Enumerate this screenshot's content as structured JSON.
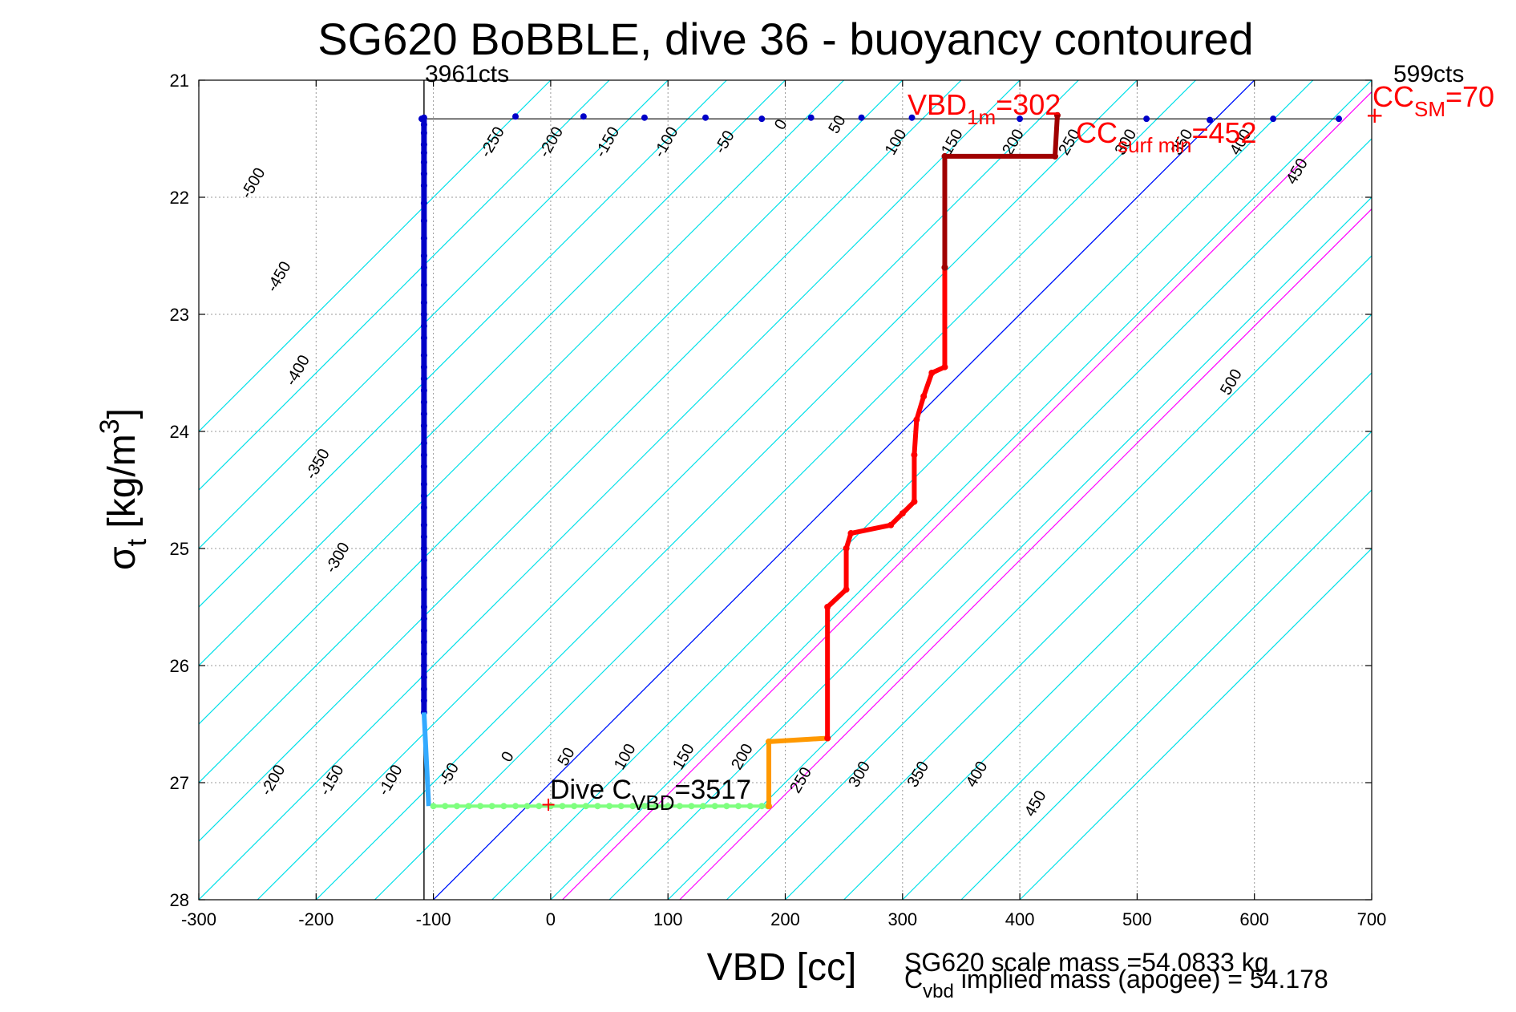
{
  "chart_data": {
    "type": "scatter",
    "title": "SG620 BoBBLE, dive 36 - buoyancy contoured",
    "xlabel": "VBD [cc]",
    "ylabel_main": "σ",
    "ylabel_sub": "t",
    "ylabel_rest": " [kg/m",
    "ylabel_sup": "3",
    "ylabel_end": "]",
    "xlim": [
      -300,
      700
    ],
    "ylim": [
      21,
      28
    ],
    "y_reversed": true,
    "grid": true,
    "xticks": [
      -300,
      -200,
      -100,
      0,
      100,
      200,
      300,
      400,
      500,
      600,
      700
    ],
    "yticks": [
      21,
      22,
      23,
      24,
      25,
      26,
      27,
      28
    ],
    "contour_slope": 0.014,
    "top_contours": [
      {
        "label": "-500",
        "x0": -900
      },
      {
        "label": "-450",
        "x0": -850
      },
      {
        "label": "-400",
        "x0": -800
      },
      {
        "label": "-350",
        "x0": -750
      },
      {
        "label": "-300",
        "x0": -700
      },
      {
        "label": "-250",
        "x0": -650
      },
      {
        "label": "-200",
        "x0": -600
      },
      {
        "label": "-150",
        "x0": -550
      },
      {
        "label": "-100",
        "x0": -500
      },
      {
        "label": "-50",
        "x0": -450
      },
      {
        "label": "0",
        "x0": -400
      },
      {
        "label": "50",
        "x0": -350
      },
      {
        "label": "100",
        "x0": -300
      },
      {
        "label": "150",
        "x0": -250
      },
      {
        "label": "200",
        "x0": -200
      },
      {
        "label": "250",
        "x0": -150
      },
      {
        "label": "300",
        "x0": -100
      },
      {
        "label": "350",
        "x0": -50
      },
      {
        "label": "400",
        "x0": 0
      },
      {
        "label": "450",
        "x0": 50
      },
      {
        "label": "500",
        "x0": 100
      }
    ],
    "bottom_contour_labels": [
      "-200",
      "-150",
      "-100",
      "-50",
      "0",
      "50",
      "100",
      "150",
      "200",
      "250",
      "300",
      "350",
      "400",
      "450"
    ],
    "cyan_contour_x0": [
      -900,
      -850,
      -800,
      -750,
      -700,
      -650,
      -600,
      -550,
      -500,
      -450,
      -400,
      -350,
      -300,
      -250,
      -200,
      -150,
      -100,
      -50,
      0,
      50,
      100,
      150,
      200
    ],
    "blue_line_x0": -400,
    "magenta_line_x0": [
      -300,
      -200
    ],
    "contour_labels_top": [
      {
        "text": "-500",
        "x": -250,
        "y": 21.9
      },
      {
        "text": "-450",
        "x": -228,
        "y": 22.7
      },
      {
        "text": "-400",
        "x": -212,
        "y": 23.5
      },
      {
        "text": "-350",
        "x": -195,
        "y": 24.3
      },
      {
        "text": "-300",
        "x": -178,
        "y": 25.1
      },
      {
        "text": "-250",
        "x": -46,
        "y": 21.55
      },
      {
        "text": "-200",
        "x": 4,
        "y": 21.55
      },
      {
        "text": "-150",
        "x": 52,
        "y": 21.55
      },
      {
        "text": "-100",
        "x": 102,
        "y": 21.55
      },
      {
        "text": "-50",
        "x": 152,
        "y": 21.55
      },
      {
        "text": "0",
        "x": 200,
        "y": 21.4
      },
      {
        "text": "50",
        "x": 248,
        "y": 21.4
      },
      {
        "text": "100",
        "x": 298,
        "y": 21.55
      },
      {
        "text": "150",
        "x": 346,
        "y": 21.55
      },
      {
        "text": "200",
        "x": 398,
        "y": 21.55
      },
      {
        "text": "250",
        "x": 446,
        "y": 21.55
      },
      {
        "text": "300",
        "x": 494,
        "y": 21.55
      },
      {
        "text": "350",
        "x": 542,
        "y": 21.55
      },
      {
        "text": "400",
        "x": 592,
        "y": 21.55
      },
      {
        "text": "450",
        "x": 640,
        "y": 21.8
      },
      {
        "text": "500",
        "x": 584,
        "y": 23.6
      }
    ],
    "contour_labels_bottom": [
      {
        "text": "-200",
        "x": -233,
        "y": 27.0
      },
      {
        "text": "-150",
        "x": -183,
        "y": 27.0
      },
      {
        "text": "-100",
        "x": -133,
        "y": 27.0
      },
      {
        "text": "-50",
        "x": -83,
        "y": 26.95
      },
      {
        "text": "0",
        "x": -33,
        "y": 26.8
      },
      {
        "text": "50",
        "x": 17,
        "y": 26.8
      },
      {
        "text": "100",
        "x": 67,
        "y": 26.8
      },
      {
        "text": "150",
        "x": 117,
        "y": 26.8
      },
      {
        "text": "200",
        "x": 167,
        "y": 26.8
      },
      {
        "text": "250",
        "x": 217,
        "y": 27.0
      },
      {
        "text": "300",
        "x": 267,
        "y": 26.95
      },
      {
        "text": "350",
        "x": 317,
        "y": 26.95
      },
      {
        "text": "400",
        "x": 367,
        "y": 26.95
      },
      {
        "text": "450",
        "x": 417,
        "y": 27.2
      }
    ],
    "climb_series": {
      "color": "#0000c8",
      "x": -108,
      "y_points": [
        21.32,
        21.38,
        21.45,
        21.55,
        21.62,
        21.7,
        21.8,
        21.9,
        22.05,
        22.2,
        22.35,
        22.5,
        22.6,
        22.75,
        22.9,
        23.0,
        23.1,
        23.2,
        23.35,
        23.45,
        23.55,
        23.65,
        23.75,
        23.85,
        23.95,
        24.1,
        24.2,
        24.3,
        24.45,
        24.55,
        24.65,
        24.8,
        24.9,
        25.0,
        25.1,
        25.25,
        25.35,
        25.5,
        25.6,
        25.7,
        25.8,
        25.9,
        26.0,
        26.1,
        26.2,
        26.3,
        26.4
      ]
    },
    "top_series": {
      "color": "#0000c8",
      "points": [
        [
          -110,
          21.33
        ],
        [
          -30,
          21.31
        ],
        [
          28,
          21.31
        ],
        [
          80,
          21.32
        ],
        [
          132,
          21.32
        ],
        [
          180,
          21.33
        ],
        [
          222,
          21.32
        ],
        [
          265,
          21.32
        ],
        [
          308,
          21.32
        ],
        [
          400,
          21.33
        ],
        [
          508,
          21.33
        ],
        [
          562,
          21.34
        ],
        [
          616,
          21.33
        ],
        [
          672,
          21.33
        ]
      ]
    },
    "bottom_series": {
      "color": "#7fff7f",
      "y": 27.2,
      "x_points": [
        -100,
        -90,
        -80,
        -70,
        -60,
        -50,
        -40,
        -30,
        -20,
        -10,
        0,
        10,
        20,
        30,
        40,
        50,
        60,
        70,
        80,
        90,
        100,
        110,
        120,
        130,
        140,
        150,
        160,
        170,
        180,
        185
      ]
    },
    "dive_steps": [
      {
        "points": [
          [
            186,
            27.2
          ],
          [
            186,
            26.65
          ],
          [
            236,
            26.62
          ]
        ],
        "color": "#ff9900"
      },
      {
        "points": [
          [
            236,
            26.62
          ],
          [
            236,
            25.5
          ],
          [
            252,
            25.35
          ],
          [
            252,
            25.0
          ],
          [
            256,
            24.87
          ],
          [
            290,
            24.8
          ],
          [
            300,
            24.7
          ],
          [
            310,
            24.6
          ],
          [
            310,
            24.2
          ],
          [
            312,
            23.9
          ],
          [
            318,
            23.7
          ],
          [
            325,
            23.5
          ],
          [
            336,
            23.45
          ],
          [
            336,
            22.6
          ]
        ],
        "color": "#ff0000"
      },
      {
        "points": [
          [
            336,
            22.6
          ],
          [
            336,
            21.65
          ],
          [
            430,
            21.65
          ],
          [
            432,
            21.3
          ]
        ],
        "color": "#a00000"
      }
    ],
    "annotations": {
      "top_left_cts": "3961cts",
      "top_right_cts": "599cts",
      "vbd1m_main": "VBD",
      "vbd1m_sub": "1m",
      "vbd1m_val": "=302",
      "cc_surf_main": "CC",
      "cc_surf_sub": "surf min",
      "cc_surf_val": "=452",
      "cc_sm_main": "CC",
      "cc_sm_sub": "SM",
      "cc_sm_val": "=70",
      "dive_c_main": "Dive C",
      "dive_c_sub": "VBD",
      "dive_c_val": "=3517",
      "scale_mass": "SG620 scale mass =54.0833 kg",
      "implied_main": "C",
      "implied_sub": "vbd",
      "implied_rest": " implied mass (apogee) = 54.178"
    }
  }
}
